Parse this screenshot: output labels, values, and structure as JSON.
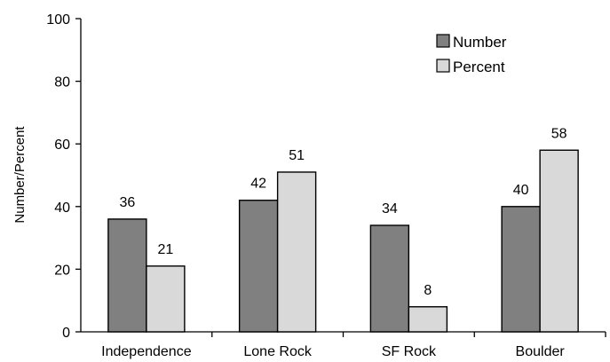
{
  "chart_data": {
    "type": "bar",
    "title": "",
    "xlabel": "",
    "ylabel": "Number/Percent",
    "ylim": [
      0,
      100
    ],
    "yticks": [
      0,
      20,
      40,
      60,
      80,
      100
    ],
    "grid": false,
    "legend_position": "top-right",
    "categories": [
      "Independence",
      "Lone Rock",
      "SF Rock",
      "Boulder"
    ],
    "series": [
      {
        "name": "Number",
        "values": [
          36,
          42,
          34,
          40
        ],
        "color": "#808080"
      },
      {
        "name": "Percent",
        "values": [
          21,
          51,
          8,
          58
        ],
        "color": "#d9d9d9"
      }
    ],
    "data_labels": true
  }
}
